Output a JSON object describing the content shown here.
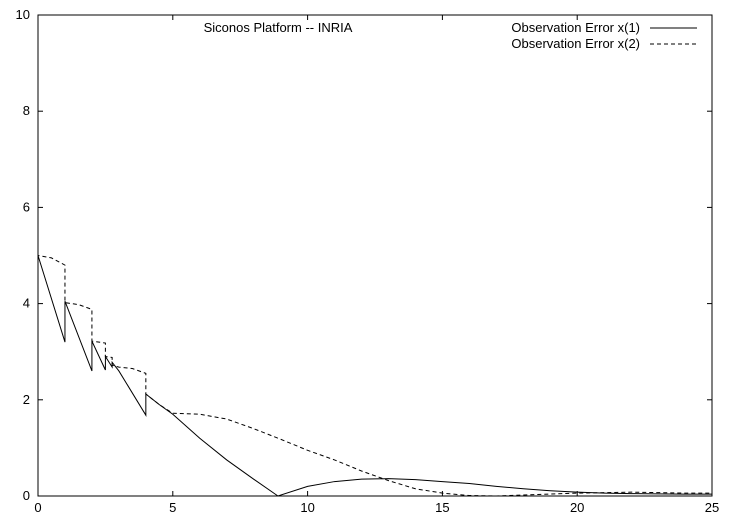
{
  "chart_data": {
    "type": "line",
    "title": "Siconos Platform -- INRIA",
    "xlabel": "",
    "ylabel": "",
    "xlim": [
      0,
      25
    ],
    "ylim": [
      0,
      10
    ],
    "x_ticks": [
      "0",
      "5",
      "10",
      "15",
      "20",
      "25"
    ],
    "y_ticks": [
      "0",
      "2",
      "4",
      "6",
      "8",
      "10"
    ],
    "grid": false,
    "legend_position": "top-right",
    "series": [
      {
        "name": "Observation Error x(1)",
        "style": "solid",
        "color": "#000000",
        "points": [
          [
            0,
            5.0
          ],
          [
            1.0,
            3.2
          ],
          [
            1.0,
            4.05
          ],
          [
            2.0,
            2.6
          ],
          [
            2.0,
            3.22
          ],
          [
            2.5,
            2.62
          ],
          [
            2.5,
            2.9
          ],
          [
            2.75,
            2.68
          ],
          [
            2.75,
            2.78
          ],
          [
            3.0,
            2.6
          ],
          [
            4.0,
            1.68
          ],
          [
            4.0,
            2.12
          ],
          [
            4.5,
            1.9
          ],
          [
            5.0,
            1.7
          ],
          [
            6.0,
            1.2
          ],
          [
            7.0,
            0.75
          ],
          [
            8.0,
            0.35
          ],
          [
            8.9,
            0.0
          ],
          [
            10.0,
            0.2
          ],
          [
            11.0,
            0.3
          ],
          [
            12.0,
            0.35
          ],
          [
            13.0,
            0.36
          ],
          [
            14.0,
            0.34
          ],
          [
            15.0,
            0.3
          ],
          [
            16.0,
            0.26
          ],
          [
            17.0,
            0.2
          ],
          [
            18.0,
            0.15
          ],
          [
            19.0,
            0.11
          ],
          [
            20.0,
            0.08
          ],
          [
            21.0,
            0.06
          ],
          [
            22.0,
            0.05
          ],
          [
            23.0,
            0.045
          ],
          [
            24.0,
            0.04
          ],
          [
            25.0,
            0.04
          ]
        ]
      },
      {
        "name": "Observation Error x(2)",
        "style": "dashed",
        "color": "#000000",
        "points": [
          [
            0,
            0.0
          ],
          [
            0,
            5.0
          ],
          [
            0.5,
            4.95
          ],
          [
            1.0,
            4.8
          ],
          [
            1.0,
            4.02
          ],
          [
            1.5,
            3.98
          ],
          [
            2.0,
            3.88
          ],
          [
            2.0,
            3.22
          ],
          [
            2.5,
            3.18
          ],
          [
            2.5,
            2.9
          ],
          [
            2.75,
            2.88
          ],
          [
            2.75,
            2.72
          ],
          [
            3.0,
            2.68
          ],
          [
            3.5,
            2.65
          ],
          [
            4.0,
            2.55
          ],
          [
            4.0,
            2.12
          ],
          [
            4.5,
            1.9
          ],
          [
            5.0,
            1.72
          ],
          [
            6.0,
            1.7
          ],
          [
            7.0,
            1.6
          ],
          [
            8.0,
            1.4
          ],
          [
            9.0,
            1.18
          ],
          [
            10.0,
            0.95
          ],
          [
            11.0,
            0.75
          ],
          [
            12.0,
            0.52
          ],
          [
            13.0,
            0.32
          ],
          [
            14.0,
            0.15
          ],
          [
            15.0,
            0.06
          ],
          [
            16.0,
            0.01
          ],
          [
            17.0,
            0.0
          ],
          [
            18.0,
            0.02
          ],
          [
            19.0,
            0.04
          ],
          [
            20.0,
            0.06
          ],
          [
            21.0,
            0.07
          ],
          [
            22.0,
            0.08
          ],
          [
            23.0,
            0.07
          ],
          [
            24.0,
            0.06
          ],
          [
            25.0,
            0.06
          ]
        ]
      }
    ]
  }
}
